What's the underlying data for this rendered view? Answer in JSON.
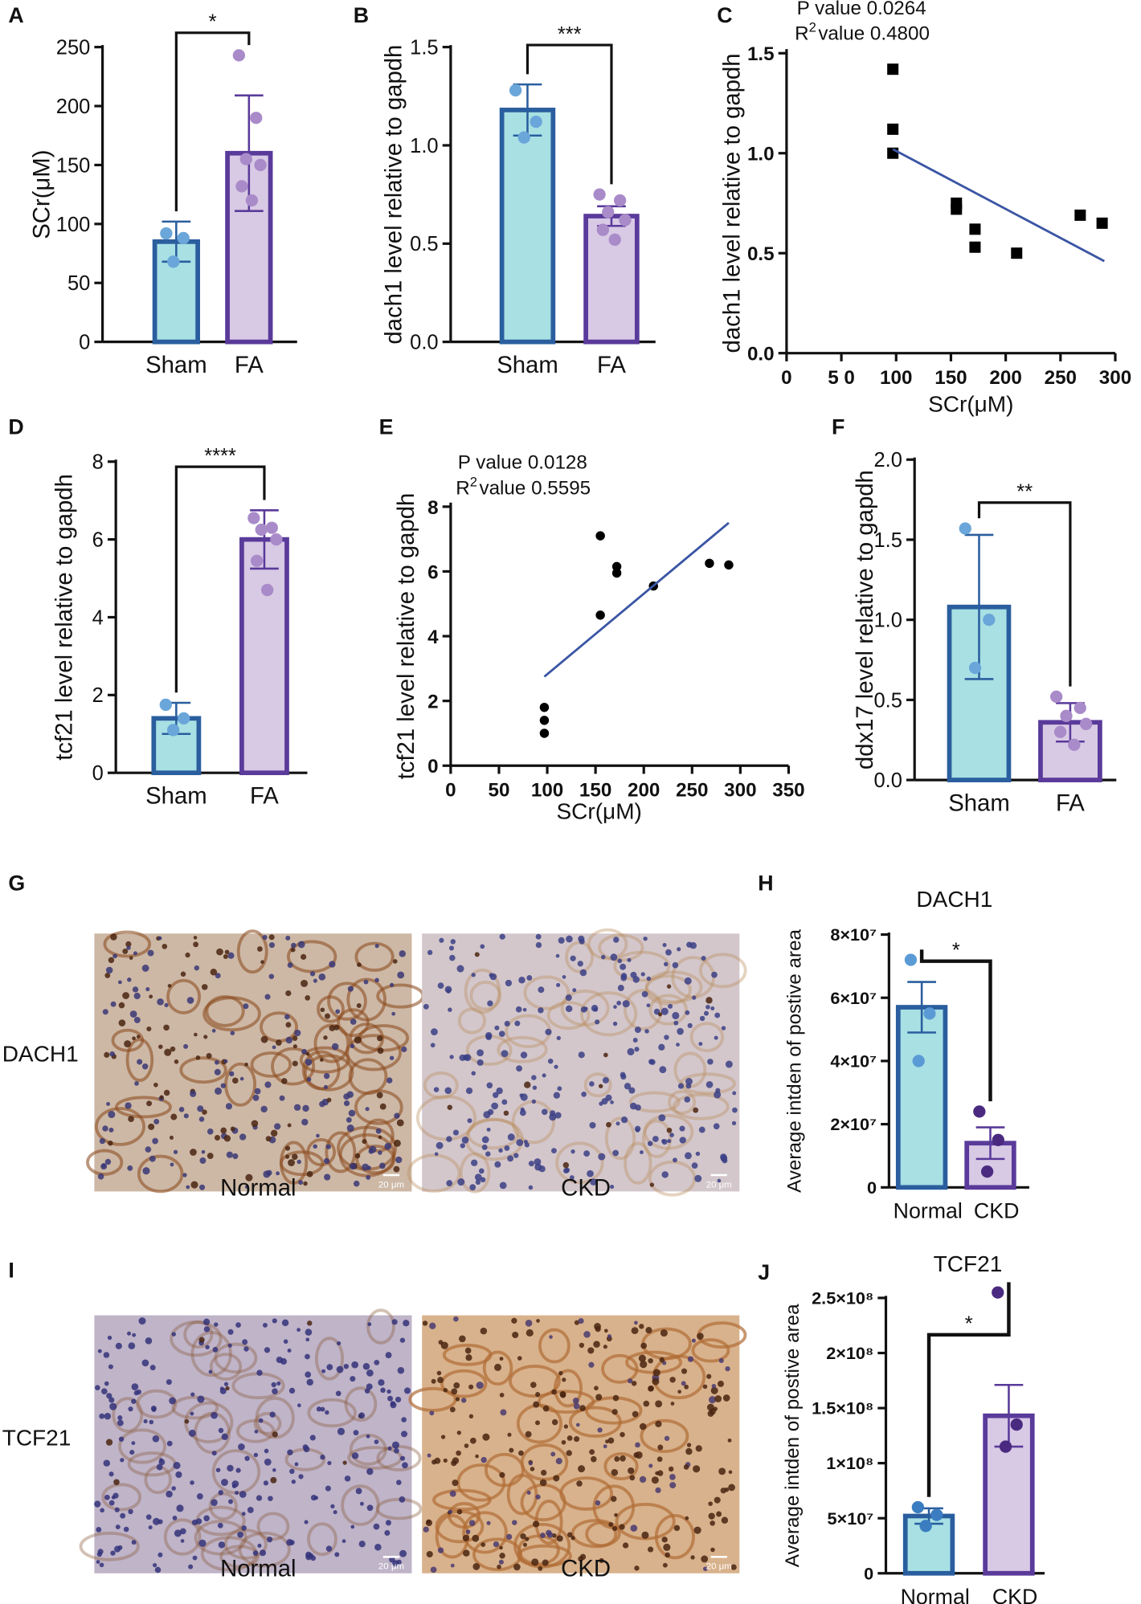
{
  "chart_data": [
    {
      "type": "bar",
      "panel": "A",
      "ylabel": "SCr(μM)",
      "categories": [
        "Sham",
        "FA"
      ],
      "values": [
        85,
        160
      ],
      "errors": [
        17,
        49
      ],
      "points": [
        [
          92,
          88,
          68
        ],
        [
          243,
          190,
          155,
          150,
          132,
          120
        ]
      ],
      "colors": [
        "#a8e0e4",
        "#d8c9e5"
      ],
      "edge_colors": [
        "#2a5e9e",
        "#5a3a9a"
      ],
      "point_colors": [
        "#6aa6d9",
        "#a98bc9"
      ],
      "ylim": [
        0,
        250
      ],
      "yticks": [
        0,
        50,
        100,
        150,
        200,
        250
      ],
      "significance": "*"
    },
    {
      "type": "bar",
      "panel": "B",
      "ylabel": "dach1 level relative to gapdh",
      "categories": [
        "Sham",
        "FA"
      ],
      "values": [
        1.18,
        0.64
      ],
      "errors": [
        0.13,
        0.05
      ],
      "points": [
        [
          1.28,
          1.12,
          1.04
        ],
        [
          0.75,
          0.72,
          0.66,
          0.62,
          0.57,
          0.52
        ]
      ],
      "colors": [
        "#a8e0e4",
        "#d8c9e5"
      ],
      "edge_colors": [
        "#2a5e9e",
        "#5a3a9a"
      ],
      "point_colors": [
        "#6aa6d9",
        "#a98bc9"
      ],
      "ylim": [
        0,
        1.5
      ],
      "yticks": [
        {
          "value": 0,
          "label": "0.0"
        },
        0.5,
        {
          "value": 1,
          "label": "1.0"
        },
        1.5
      ],
      "significance": "***"
    },
    {
      "type": "scatter",
      "panel": "C",
      "xlabel": "SCr(μM)",
      "ylabel": "dach1 level relative to gapdh",
      "x": [
        97,
        97,
        97,
        155,
        155,
        172,
        172,
        210,
        268,
        288
      ],
      "values": [
        1.42,
        1.12,
        1.0,
        0.75,
        0.72,
        0.62,
        0.53,
        0.5,
        0.69,
        0.65
      ],
      "fit": {
        "x": [
          97,
          290
        ],
        "y": [
          1.02,
          0.46
        ]
      },
      "p_text": "P value 0.0264",
      "r2_text": {
        "base": "R",
        "sup": "2",
        "rest": "value 0.4800"
      },
      "marker": "square",
      "color": "#000000",
      "line_color": "#3a55a4",
      "xlim": [
        0,
        300
      ],
      "xticks": [
        0,
        {
          "value": 50,
          "label": "5 0"
        },
        100,
        150,
        200,
        250,
        300
      ],
      "ylim": [
        0,
        1.5
      ],
      "yticks": [
        {
          "value": 0,
          "label": "0.0"
        },
        0.5,
        {
          "value": 1,
          "label": "1.0"
        },
        1.5
      ]
    },
    {
      "type": "bar",
      "panel": "D",
      "ylabel": "tcf21 level relative to gapdh",
      "categories": [
        "Sham",
        "FA"
      ],
      "values": [
        1.4,
        6.0
      ],
      "errors": [
        0.4,
        0.75
      ],
      "points": [
        [
          1.75,
          1.4,
          1.1
        ],
        [
          6.55,
          6.3,
          6.25,
          6.0,
          5.45,
          4.7
        ]
      ],
      "colors": [
        "#a8e0e4",
        "#d8c9e5"
      ],
      "edge_colors": [
        "#2a5e9e",
        "#5a3a9a"
      ],
      "point_colors": [
        "#6aa6d9",
        "#a98bc9"
      ],
      "ylim": [
        0,
        8
      ],
      "yticks": [
        0,
        2,
        4,
        6,
        8
      ],
      "significance": "****"
    },
    {
      "type": "scatter",
      "panel": "E",
      "xlabel": "SCr(μM)",
      "ylabel": "tcf21 level relative to gapdh",
      "x": [
        97,
        97,
        97,
        155,
        155,
        172,
        172,
        210,
        268,
        288
      ],
      "values": [
        1.8,
        1.4,
        1.0,
        7.1,
        4.65,
        6.15,
        5.95,
        5.55,
        6.25,
        6.2
      ],
      "fit": {
        "x": [
          97,
          288
        ],
        "y": [
          2.75,
          7.5
        ]
      },
      "p_text": "P value 0.0128",
      "r2_text": {
        "base": "R",
        "sup": "2",
        "rest": "value 0.5595"
      },
      "marker": "circle",
      "color": "#000000",
      "line_color": "#3a55a4",
      "xlim": [
        0,
        350
      ],
      "xticks": [
        0,
        50,
        100,
        150,
        200,
        250,
        300,
        350
      ],
      "ylim": [
        0,
        8
      ],
      "yticks": [
        0,
        2,
        4,
        6,
        8
      ]
    },
    {
      "type": "bar",
      "panel": "F",
      "ylabel": "ddx17 level relative to gapdh",
      "categories": [
        "Sham",
        "FA"
      ],
      "values": [
        1.08,
        0.36
      ],
      "errors": [
        0.45,
        0.12
      ],
      "points": [
        [
          1.57,
          1.0,
          0.7
        ],
        [
          0.52,
          0.45,
          0.4,
          0.35,
          0.3,
          0.22
        ]
      ],
      "colors": [
        "#a8e0e4",
        "#d8c9e5"
      ],
      "edge_colors": [
        "#2a5e9e",
        "#5a3a9a"
      ],
      "point_colors": [
        "#6aa6d9",
        "#a98bc9"
      ],
      "ylim": [
        0,
        2
      ],
      "yticks": [
        {
          "value": 0,
          "label": "0.0"
        },
        0.5,
        {
          "value": 1,
          "label": "1.0"
        },
        1.5,
        {
          "value": 2,
          "label": "2.0"
        }
      ],
      "significance": "**"
    },
    {
      "type": "bar",
      "panel": "H",
      "title": "DACH1",
      "ylabel": "Average intden of postive area",
      "categories": [
        "Normal",
        "CKD"
      ],
      "values": [
        57000000,
        14000000
      ],
      "errors": [
        8000000,
        5000000
      ],
      "points": [
        [
          72000000,
          55000000,
          40000000
        ],
        [
          24000000,
          15000000,
          5000000
        ]
      ],
      "colors": [
        "#a8e0e4",
        "#d8c9e5"
      ],
      "edge_colors": [
        "#2a5e9e",
        "#5a3a9a"
      ],
      "point_colors": [
        "#5b9bd5",
        "#4a2a80"
      ],
      "ylim": [
        0,
        80000000
      ],
      "yticks": [
        0,
        {
          "value": 20000000,
          "label": "2×10⁷"
        },
        {
          "value": 40000000,
          "label": "4×10⁷"
        },
        {
          "value": 60000000,
          "label": "6×10⁷"
        },
        {
          "value": 80000000,
          "label": "8×10⁷"
        }
      ],
      "significance": "*"
    },
    {
      "type": "bar",
      "panel": "J",
      "title": "TCF21",
      "ylabel": "Average intden of postive area",
      "categories": [
        "Normal",
        "CKD"
      ],
      "values": [
        52000000,
        143000000
      ],
      "errors": [
        7000000,
        28000000
      ],
      "points": [
        [
          60000000,
          53000000,
          43000000
        ],
        [
          255000000,
          135000000,
          115000000
        ]
      ],
      "colors": [
        "#a8e0e4",
        "#d8c9e5"
      ],
      "edge_colors": [
        "#2a5e9e",
        "#5a3a9a"
      ],
      "point_colors": [
        "#3b7dc0",
        "#4a2a80"
      ],
      "ylim": [
        0,
        250000000
      ],
      "yticks": [
        0,
        {
          "value": 50000000,
          "label": "5×10⁷"
        },
        {
          "value": 100000000,
          "label": "1×10⁸"
        },
        {
          "value": 150000000,
          "label": "1.5×10⁸"
        },
        {
          "value": 200000000,
          "label": "2×10⁸"
        },
        {
          "value": 250000000,
          "label": "2.5×10⁸"
        }
      ],
      "significance": "*"
    }
  ],
  "panels": [
    {
      "letter": "G",
      "row_label": "DACH1",
      "captions": [
        "Normal",
        "CKD"
      ],
      "scale_bars": [
        "20 μm",
        "20 μm"
      ]
    },
    {
      "letter": "I",
      "row_label": "TCF21",
      "captions": [
        "Normal",
        "CKD"
      ],
      "scale_bars": [
        "20 μm",
        "20 μm"
      ]
    }
  ]
}
